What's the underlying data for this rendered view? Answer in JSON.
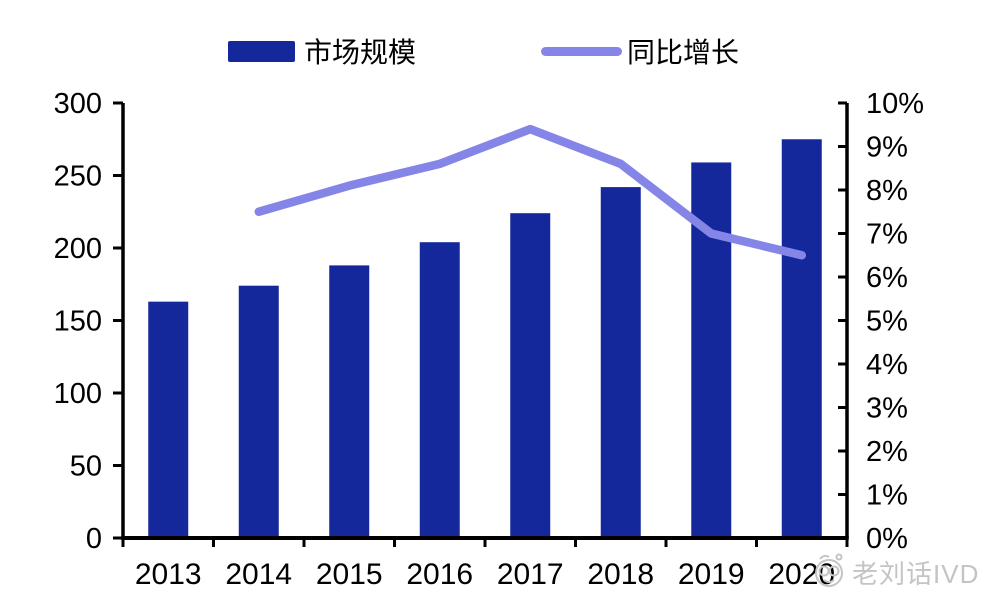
{
  "chart_data": {
    "type": "bar",
    "subtype": "bar-line-combo",
    "title": "",
    "categories": [
      "2013",
      "2014",
      "2015",
      "2016",
      "2017",
      "2018",
      "2019",
      "2020"
    ],
    "series": [
      {
        "name": "市场规模",
        "type": "bar",
        "axis": "left",
        "color": "#15289b",
        "values": [
          163,
          174,
          188,
          204,
          224,
          242,
          259,
          275
        ]
      },
      {
        "name": "同比增长",
        "type": "line",
        "axis": "right",
        "color": "#8585e8",
        "unit": "%",
        "values": [
          null,
          7.5,
          8.1,
          8.6,
          9.4,
          8.6,
          7.0,
          6.5
        ]
      }
    ],
    "left_axis": {
      "min": 0,
      "max": 300,
      "step": 50,
      "tick_labels": [
        "0",
        "50",
        "100",
        "150",
        "200",
        "250",
        "300"
      ]
    },
    "right_axis": {
      "min": 0,
      "max": 10,
      "step": 1,
      "tick_labels": [
        "0%",
        "1%",
        "2%",
        "3%",
        "4%",
        "5%",
        "6%",
        "7%",
        "8%",
        "9%",
        "10%"
      ]
    },
    "grid": false,
    "legend_position": "top",
    "axis_color": "#000000"
  },
  "watermark": {
    "text": "老刘话IVD"
  }
}
